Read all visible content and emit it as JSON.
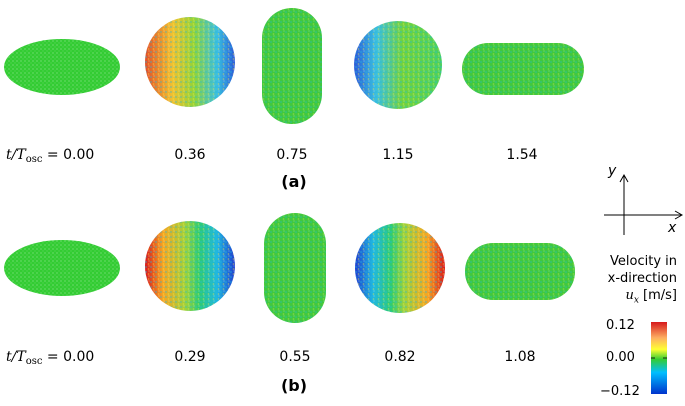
{
  "panels": [
    {
      "label": "(a)",
      "time_prefix_var": "t/T",
      "time_prefix_sub": "osc",
      "time_prefix_eq": " = 0.00",
      "times": [
        "0.36",
        "0.75",
        "1.15",
        "1.54"
      ]
    },
    {
      "label": "(b)",
      "time_prefix_var": "t/T",
      "time_prefix_sub": "osc",
      "time_prefix_eq": " = 0.00",
      "times": [
        "0.29",
        "0.55",
        "0.82",
        "1.08"
      ]
    }
  ],
  "axes": {
    "y": "y",
    "x": "x"
  },
  "colorbar": {
    "title_line1": "Velocity in",
    "title_line2": "x-direction",
    "title_var": "u",
    "title_sub": "x",
    "title_unit": "[m/s]",
    "ticks": [
      "0.12",
      "0.00",
      "−0.12"
    ],
    "colors": [
      "#d7191c",
      "#fdae61",
      "#ffff00",
      "#1a9850",
      "#00bfff",
      "#0033cc"
    ]
  }
}
